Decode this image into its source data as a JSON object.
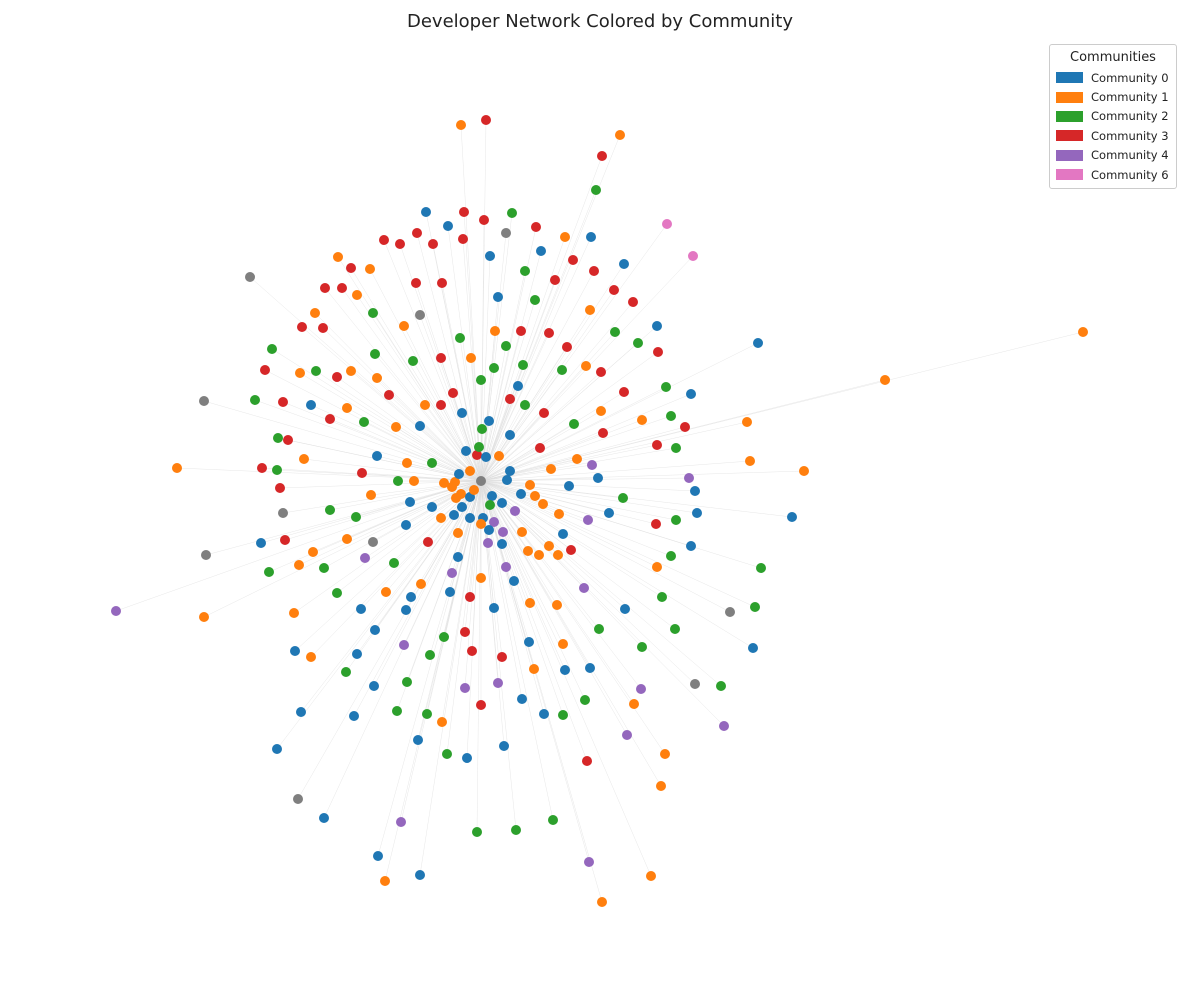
{
  "title": "Developer Network Colored by Community",
  "legend": {
    "title": "Communities",
    "items": [
      {
        "label": "Community 0",
        "color": "#1f77b4"
      },
      {
        "label": "Community 1",
        "color": "#ff7f0e"
      },
      {
        "label": "Community 2",
        "color": "#2ca02c"
      },
      {
        "label": "Community 3",
        "color": "#d62728"
      },
      {
        "label": "Community 4",
        "color": "#9467bd"
      },
      {
        "label": "Community 6",
        "color": "#e377c2"
      }
    ]
  },
  "other_color": "#7f7f7f",
  "edge_color": "#dddddd",
  "hub_node_community": "other"
}
